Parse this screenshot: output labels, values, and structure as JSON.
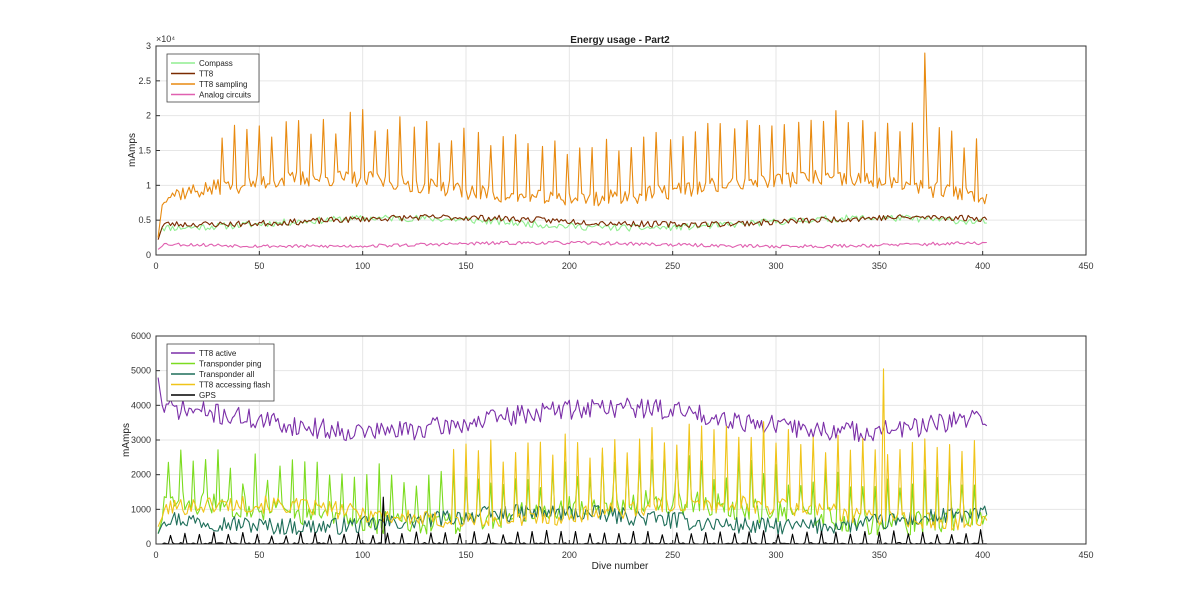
{
  "figure": {
    "background": "#ffffff"
  },
  "chart_data": [
    {
      "type": "line",
      "title": "Energy usage - Part2",
      "xlabel": "",
      "ylabel": "mAmps",
      "xlim": [
        0,
        450
      ],
      "ylim": [
        0,
        30000
      ],
      "xticks": [
        0,
        50,
        100,
        150,
        200,
        250,
        300,
        350,
        400,
        450
      ],
      "yticks": [
        0,
        5000,
        10000,
        15000,
        20000,
        25000,
        30000
      ],
      "ytick_labels": [
        "0",
        "0.5",
        "1",
        "1.5",
        "2",
        "2.5",
        "3"
      ],
      "y_exponent_label": "×10⁴",
      "grid": true,
      "legend_position": "top-left",
      "series": [
        {
          "name": "Compass",
          "color": "#90ee90",
          "base": 4600,
          "amp": 700,
          "noise": 500,
          "seed": 11,
          "start": 2500
        },
        {
          "name": "TT8",
          "color": "#7a2a00",
          "base": 4900,
          "amp": 500,
          "noise": 450,
          "seed": 23,
          "start": 2200
        },
        {
          "name": "TT8 sampling",
          "color": "#e88a10",
          "base": 9500,
          "amp": 1500,
          "noise": 1200,
          "seed": 37,
          "start": 2500,
          "spikes": {
            "period": 6.2,
            "height": 8500,
            "from": 30,
            "to": 400,
            "max_x": 372,
            "max_value": 29000
          }
        },
        {
          "name": "Analog circuits",
          "color": "#e060b0",
          "base": 1500,
          "amp": 250,
          "noise": 250,
          "seed": 53,
          "start": 800
        }
      ]
    },
    {
      "type": "line",
      "title": "",
      "xlabel": "Dive number",
      "ylabel": "mAmps",
      "xlim": [
        0,
        450
      ],
      "ylim": [
        0,
        6000
      ],
      "xticks": [
        0,
        50,
        100,
        150,
        200,
        250,
        300,
        350,
        400,
        450
      ],
      "yticks": [
        0,
        1000,
        2000,
        3000,
        4000,
        5000,
        6000
      ],
      "ytick_labels": [
        "0",
        "1000",
        "2000",
        "3000",
        "4000",
        "5000",
        "6000"
      ],
      "grid": true,
      "legend_position": "top-left",
      "series": [
        {
          "name": "TT8 active",
          "color": "#7b2fa8",
          "base": 3600,
          "amp": 350,
          "noise": 300,
          "seed": 71,
          "start": 4800
        },
        {
          "name": "Transponder ping",
          "color": "#7cdc20",
          "base": 900,
          "amp": 300,
          "noise": 350,
          "seed": 83,
          "start": 300,
          "spikes": {
            "period": 6.0,
            "height": 1300,
            "from": 5,
            "to": 400
          }
        },
        {
          "name": "Transponder all",
          "color": "#1f6f5a",
          "base": 700,
          "amp": 200,
          "noise": 250,
          "seed": 97,
          "start": 300
        },
        {
          "name": "TT8 accessing flash",
          "color": "#f0c419",
          "base": 900,
          "amp": 250,
          "noise": 250,
          "seed": 101,
          "start": 500,
          "spikes": {
            "period": 6.0,
            "height": 2200,
            "from": 140,
            "to": 400,
            "max_x": 352,
            "max_value": 5050
          }
        },
        {
          "name": "GPS",
          "color": "#000000",
          "base": 0,
          "amp": 0,
          "noise": 40,
          "seed": 113,
          "start": 0,
          "spikes": {
            "period": 7.0,
            "height": 350,
            "from": 5,
            "to": 402,
            "max_x": 110,
            "max_value": 1350
          }
        }
      ]
    }
  ]
}
